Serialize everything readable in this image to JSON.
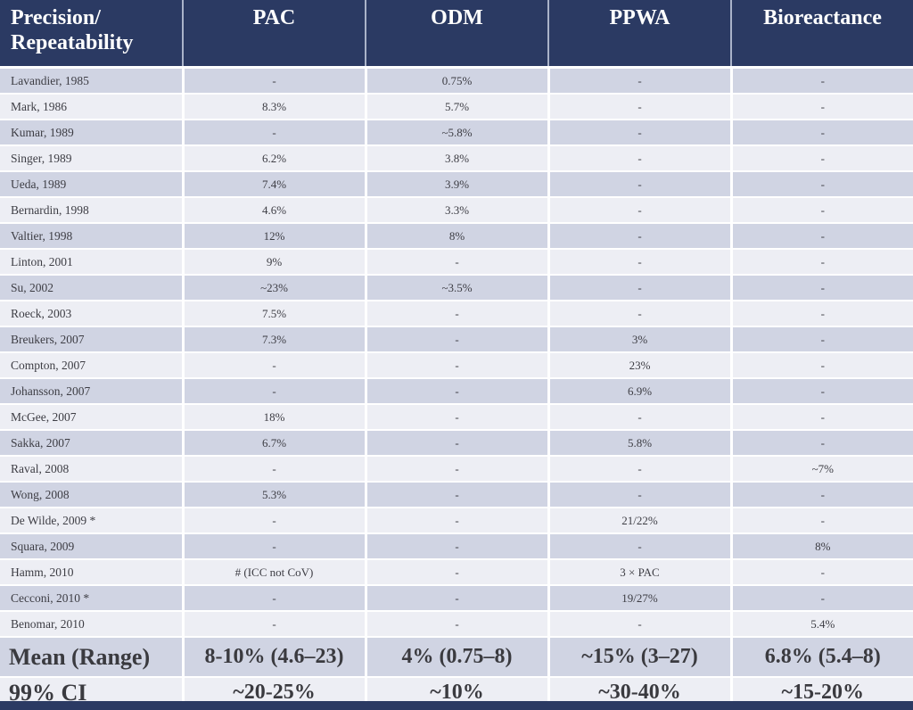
{
  "colors": {
    "header_navy": "#2b3a63",
    "header_text": "#ffffff",
    "row_dark": "#d0d4e3",
    "row_light": "#edeef4",
    "body_text": "#3d3d44",
    "footer_text": "#3a3a3f"
  },
  "table": {
    "header": {
      "first_line1": "Precision/",
      "first_line2": "Repeatability",
      "columns": [
        "PAC",
        "ODM",
        "PPWA",
        "Bioreactance"
      ]
    },
    "rows": [
      {
        "study": "Lavandier, 1985",
        "values": [
          "-",
          "0.75%",
          "-",
          "-"
        ]
      },
      {
        "study": "Mark, 1986",
        "values": [
          "8.3%",
          "5.7%",
          "-",
          "-"
        ]
      },
      {
        "study": "Kumar, 1989",
        "values": [
          "-",
          "~5.8%",
          "-",
          "-"
        ]
      },
      {
        "study": "Singer, 1989",
        "values": [
          "6.2%",
          "3.8%",
          "-",
          "-"
        ]
      },
      {
        "study": "Ueda, 1989",
        "values": [
          "7.4%",
          "3.9%",
          "-",
          "-"
        ]
      },
      {
        "study": "Bernardin, 1998",
        "values": [
          "4.6%",
          "3.3%",
          "-",
          "-"
        ]
      },
      {
        "study": "Valtier, 1998",
        "values": [
          "12%",
          "8%",
          "-",
          "-"
        ]
      },
      {
        "study": "Linton, 2001",
        "values": [
          "9%",
          "-",
          "-",
          "-"
        ]
      },
      {
        "study": "Su, 2002",
        "values": [
          "~23%",
          "~3.5%",
          "-",
          "-"
        ]
      },
      {
        "study": "Roeck, 2003",
        "values": [
          "7.5%",
          "-",
          "-",
          "-"
        ]
      },
      {
        "study": "Breukers, 2007",
        "values": [
          "7.3%",
          "-",
          "3%",
          "-"
        ]
      },
      {
        "study": "Compton, 2007",
        "values": [
          "-",
          "-",
          "23%",
          "-"
        ]
      },
      {
        "study": "Johansson, 2007",
        "values": [
          "-",
          "-",
          "6.9%",
          "-"
        ]
      },
      {
        "study": "McGee, 2007",
        "values": [
          "18%",
          "-",
          "-",
          "-"
        ]
      },
      {
        "study": "Sakka, 2007",
        "values": [
          "6.7%",
          "-",
          "5.8%",
          "-"
        ]
      },
      {
        "study": "Raval, 2008",
        "values": [
          "-",
          "-",
          "-",
          "~7%"
        ]
      },
      {
        "study": "Wong, 2008",
        "values": [
          "5.3%",
          "-",
          "-",
          "-"
        ]
      },
      {
        "study": "De Wilde, 2009 *",
        "values": [
          "-",
          "-",
          "21/22%",
          "-"
        ]
      },
      {
        "study": "Squara, 2009",
        "values": [
          "-",
          "-",
          "-",
          "8%"
        ]
      },
      {
        "study": "Hamm, 2010",
        "values": [
          "# (ICC not CoV)",
          "-",
          "3 × PAC",
          "-"
        ]
      },
      {
        "study": "Cecconi, 2010 *",
        "values": [
          "-",
          "-",
          "19/27%",
          "-"
        ]
      },
      {
        "study": "Benomar, 2010",
        "values": [
          "-",
          "-",
          "-",
          "5.4%"
        ]
      }
    ],
    "footer": [
      {
        "label": "Mean (Range)",
        "values": [
          "8-10% (4.6–23)",
          "4% (0.75–8)",
          "~15% (3–27)",
          "6.8% (5.4–8)"
        ]
      },
      {
        "label": "99% CI",
        "values": [
          "~20-25%",
          "~10%",
          "~30-40%",
          "~15-20%"
        ]
      }
    ]
  }
}
